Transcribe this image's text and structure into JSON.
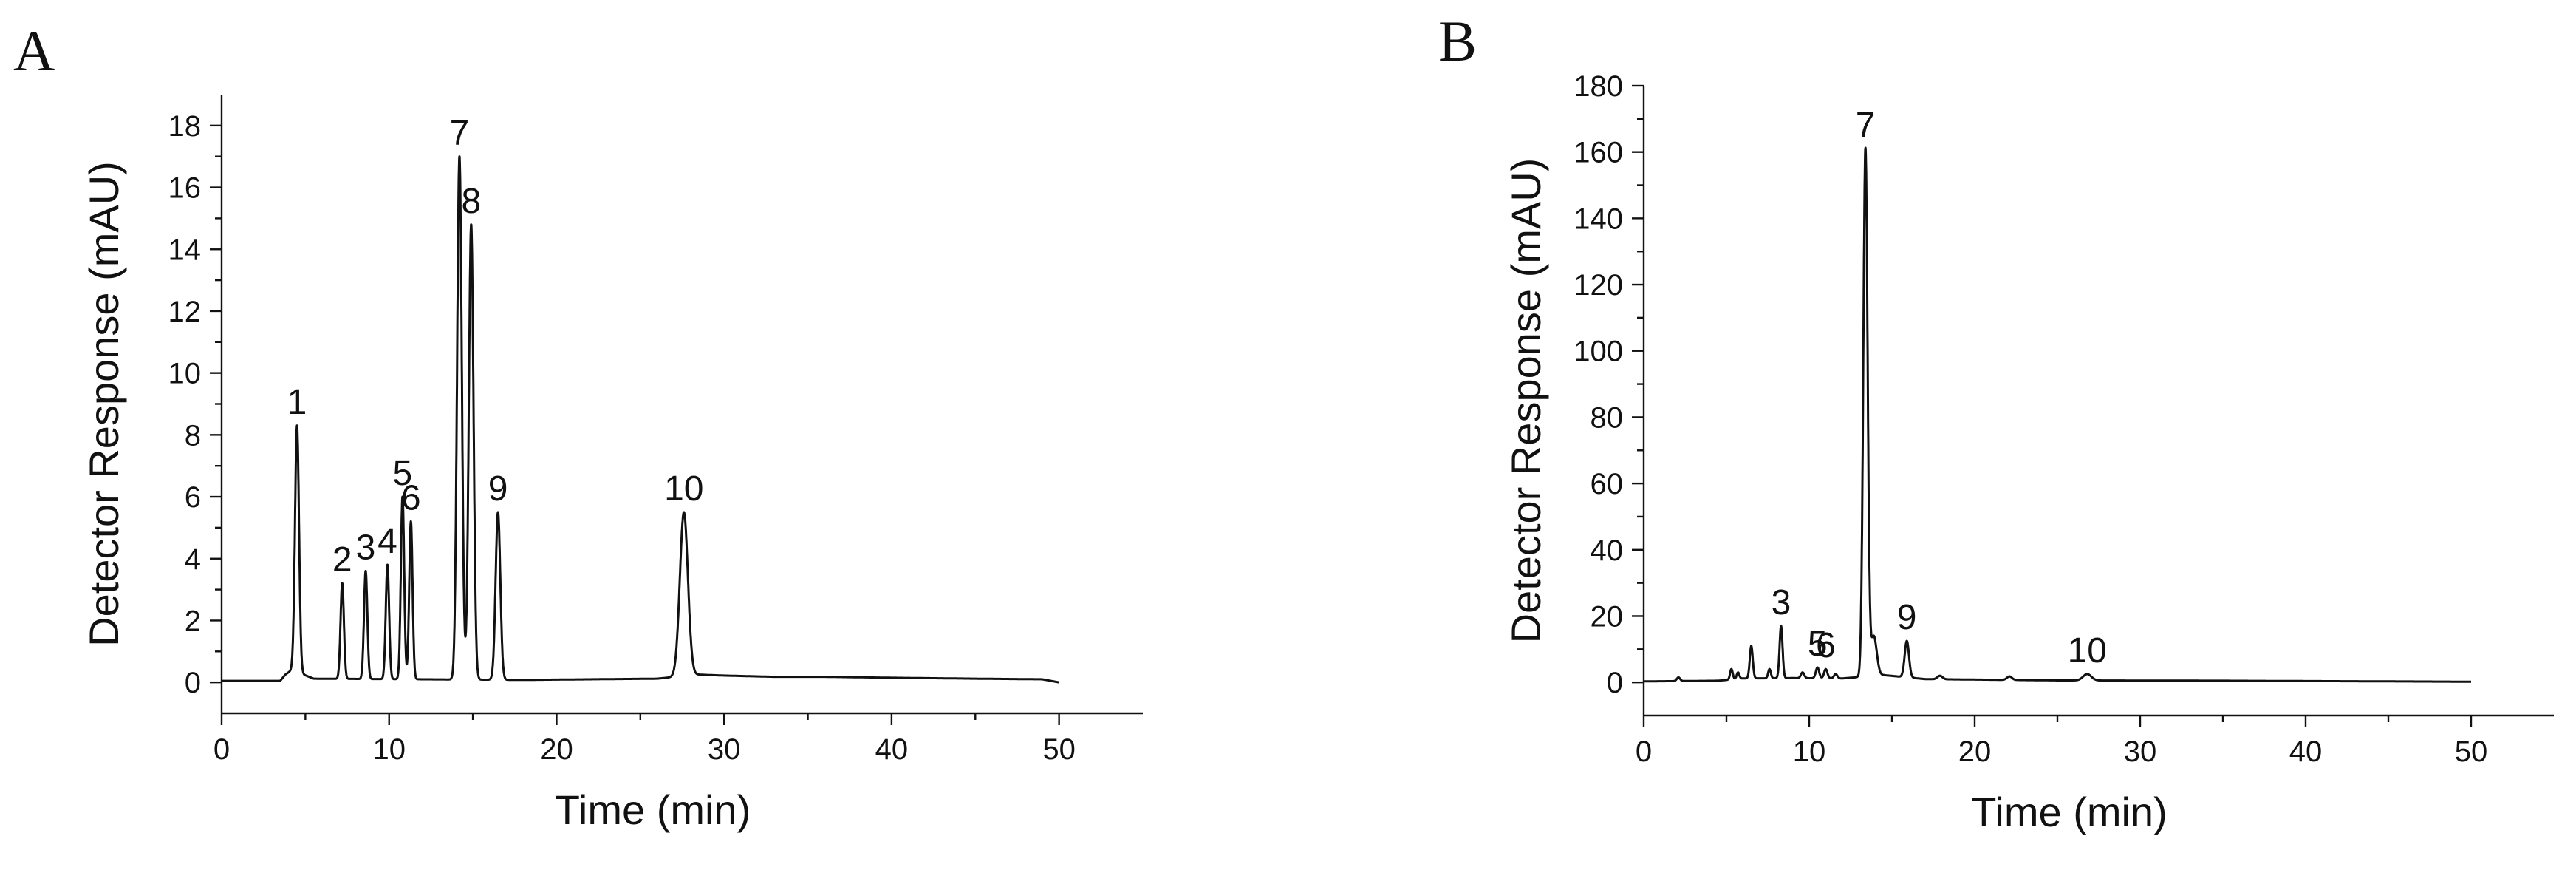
{
  "chart_data": [
    {
      "panel_letter": "A",
      "type": "line",
      "title": "",
      "xlabel": "Time (min)",
      "ylabel": "Detector Response (mAU)",
      "xlim": [
        0,
        55
      ],
      "ylim": [
        -1,
        19
      ],
      "xticks": [
        0,
        10,
        20,
        30,
        40,
        50
      ],
      "yticks": [
        0,
        2,
        4,
        6,
        8,
        10,
        12,
        14,
        16,
        18
      ],
      "grid": false,
      "baseline": [
        [
          0,
          0.05
        ],
        [
          3.5,
          0.05
        ],
        [
          3.8,
          0.25
        ],
        [
          4.2,
          0.4
        ],
        [
          5.5,
          0.12
        ],
        [
          12,
          0.1
        ],
        [
          18,
          0.08
        ],
        [
          26,
          0.12
        ],
        [
          28.5,
          0.25
        ],
        [
          30,
          0.22
        ],
        [
          33,
          0.18
        ],
        [
          36,
          0.18
        ],
        [
          40,
          0.15
        ],
        [
          45,
          0.12
        ],
        [
          49,
          0.1
        ],
        [
          50,
          0.0
        ]
      ],
      "peaks": [
        {
          "label": "1",
          "x": 4.5,
          "y": 8.3,
          "width": 0.12
        },
        {
          "label": "2",
          "x": 7.2,
          "y": 3.2,
          "width": 0.1
        },
        {
          "label": "3",
          "x": 8.6,
          "y": 3.6,
          "width": 0.1
        },
        {
          "label": "4",
          "x": 9.9,
          "y": 3.8,
          "width": 0.1
        },
        {
          "label": "5",
          "x": 10.8,
          "y": 6.0,
          "width": 0.1
        },
        {
          "label": "6",
          "x": 11.3,
          "y": 5.2,
          "width": 0.1
        },
        {
          "label": "7",
          "x": 14.2,
          "y": 17.0,
          "width": 0.14
        },
        {
          "label": "8",
          "x": 14.9,
          "y": 14.8,
          "width": 0.14
        },
        {
          "label": "9",
          "x": 16.5,
          "y": 5.5,
          "width": 0.14
        },
        {
          "label": "10",
          "x": 27.6,
          "y": 5.5,
          "width": 0.24
        }
      ]
    },
    {
      "panel_letter": "B",
      "type": "line",
      "title": "",
      "xlabel": "Time (min)",
      "ylabel": "Detector Response (mAU)",
      "xlim": [
        0,
        55
      ],
      "ylim": [
        -10,
        180
      ],
      "xticks": [
        0,
        10,
        20,
        30,
        40,
        50
      ],
      "yticks": [
        0,
        20,
        40,
        60,
        80,
        100,
        120,
        140,
        160,
        180
      ],
      "grid": false,
      "baseline": [
        [
          0,
          0.3
        ],
        [
          4.5,
          0.5
        ],
        [
          6,
          1.2
        ],
        [
          9,
          1.3
        ],
        [
          12,
          1.2
        ],
        [
          14.5,
          2.2
        ],
        [
          17,
          1.0
        ],
        [
          25,
          0.6
        ],
        [
          35,
          0.5
        ],
        [
          50,
          0.2
        ]
      ],
      "peaks": [
        {
          "label": "",
          "x": 2.1,
          "y": 1.5,
          "width": 0.1
        },
        {
          "label": "",
          "x": 5.3,
          "y": 4.0,
          "width": 0.08
        },
        {
          "label": "",
          "x": 5.7,
          "y": 3.0,
          "width": 0.08
        },
        {
          "label": "",
          "x": 6.5,
          "y": 11.0,
          "width": 0.09
        },
        {
          "label": "",
          "x": 7.6,
          "y": 4.0,
          "width": 0.08
        },
        {
          "label": "3",
          "x": 8.3,
          "y": 17.0,
          "width": 0.09
        },
        {
          "label": "",
          "x": 9.6,
          "y": 3.0,
          "width": 0.1
        },
        {
          "label": "5",
          "x": 10.5,
          "y": 4.5,
          "width": 0.1
        },
        {
          "label": "6",
          "x": 11.0,
          "y": 4.0,
          "width": 0.1
        },
        {
          "label": "",
          "x": 11.6,
          "y": 2.5,
          "width": 0.1
        },
        {
          "label": "7",
          "x": 13.4,
          "y": 161.0,
          "width": 0.13
        },
        {
          "label": "",
          "x": 13.9,
          "y": 14.0,
          "width": 0.18
        },
        {
          "label": "9",
          "x": 15.9,
          "y": 12.5,
          "width": 0.13
        },
        {
          "label": "",
          "x": 17.9,
          "y": 2.0,
          "width": 0.15
        },
        {
          "label": "",
          "x": 22.1,
          "y": 1.8,
          "width": 0.15
        },
        {
          "label": "10",
          "x": 26.8,
          "y": 2.5,
          "width": 0.25
        }
      ]
    }
  ]
}
